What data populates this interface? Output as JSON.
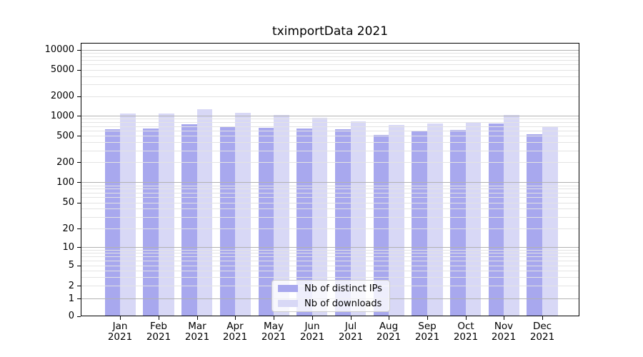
{
  "title": "tximportData 2021",
  "colors": {
    "ips_bar": "#a8a8ee",
    "downloads_bar": "#d8d8f6",
    "grid_major": "#b2b2b2",
    "grid_minor": "#e3e3e3",
    "spine": "#000000",
    "legend_border": "#cccccc"
  },
  "y_axis": {
    "tick_labels": [
      "0",
      "1",
      "2",
      "5",
      "10",
      "20",
      "50",
      "100",
      "200",
      "500",
      "1000",
      "2000",
      "5000",
      "10000"
    ],
    "tick_values": [
      0,
      1,
      2,
      5,
      10,
      20,
      50,
      100,
      200,
      500,
      1000,
      2000,
      5000,
      10000
    ],
    "scale": "symlog-like (log above 1, compressed linear near 0)"
  },
  "x_axis": {
    "year": "2021",
    "months": [
      "Jan",
      "Feb",
      "Mar",
      "Apr",
      "May",
      "Jun",
      "Jul",
      "Aug",
      "Sep",
      "Oct",
      "Nov",
      "Dec"
    ]
  },
  "legend": {
    "items": [
      {
        "label": "Nb of distinct IPs",
        "color_key": "ips_bar"
      },
      {
        "label": "Nb of downloads",
        "color_key": "downloads_bar"
      }
    ]
  },
  "chart_data": {
    "type": "bar",
    "title": "tximportData 2021",
    "categories": [
      "Jan 2021",
      "Feb 2021",
      "Mar 2021",
      "Apr 2021",
      "May 2021",
      "Jun 2021",
      "Jul 2021",
      "Aug 2021",
      "Sep 2021",
      "Oct 2021",
      "Nov 2021",
      "Dec 2021"
    ],
    "series": [
      {
        "name": "Nb of distinct IPs",
        "values": [
          630,
          640,
          755,
          670,
          665,
          650,
          620,
          510,
          580,
          615,
          770,
          525
        ]
      },
      {
        "name": "Nb of downloads",
        "values": [
          1080,
          1095,
          1250,
          1105,
          1035,
          935,
          820,
          725,
          770,
          810,
          1030,
          700
        ]
      }
    ],
    "xlabel": "",
    "ylabel": "",
    "yticks": [
      0,
      1,
      2,
      5,
      10,
      20,
      50,
      100,
      200,
      500,
      1000,
      2000,
      5000,
      10000
    ],
    "ylim": [
      0,
      14000
    ],
    "grid": "on (log minor + major gridlines, drawn over bars)",
    "legend_position": "lower center"
  }
}
